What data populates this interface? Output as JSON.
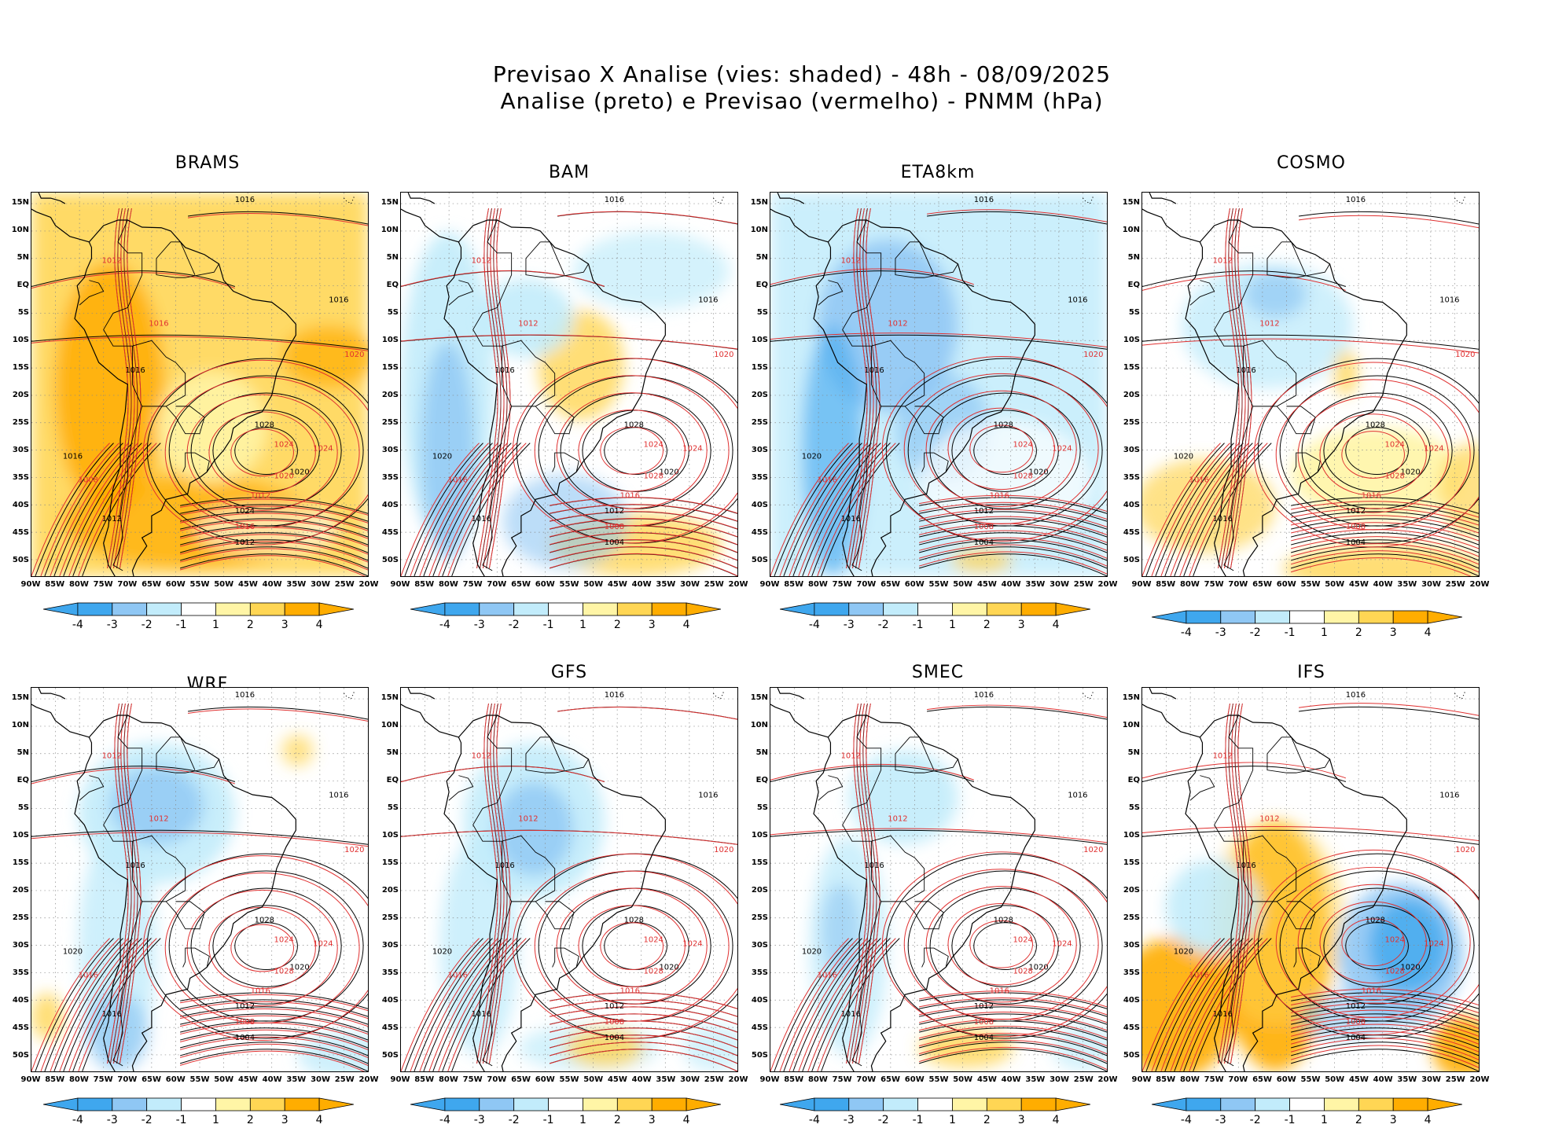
{
  "header": {
    "line1": "Previsao X Analise (vies: shaded) - 48h - 08/09/2025",
    "line2": "Analise (preto) e Previsao (vermelho) - PNMM (hPa)"
  },
  "axes": {
    "lat_labels": [
      "15N",
      "10N",
      "5N",
      "EQ",
      "5S",
      "10S",
      "15S",
      "20S",
      "25S",
      "30S",
      "35S",
      "40S",
      "45S",
      "50S"
    ],
    "lon_labels": [
      "90W",
      "85W",
      "80W",
      "75W",
      "70W",
      "65W",
      "60W",
      "55W",
      "50W",
      "45W",
      "40W",
      "35W",
      "30W",
      "25W",
      "20W"
    ]
  },
  "colorbar": {
    "labels": [
      "-4",
      "-3",
      "-2",
      "-1",
      "1",
      "2",
      "3",
      "4"
    ],
    "colors": [
      "#3fa7ee",
      "#8fc7f4",
      "#c2ecfb",
      "#ffffff",
      "#fff5a6",
      "#ffd654",
      "#ffad00"
    ]
  },
  "isobar_colors": {
    "analysis": "#000000",
    "forecast": "#e03030"
  },
  "panels": [
    {
      "name": "BRAMS",
      "labels": [
        "1016",
        "1012",
        "1016",
        "1020",
        "1016",
        "1024",
        "1028",
        "1024",
        "1020",
        "1012",
        "1024",
        "1016",
        "1012",
        "1008",
        "1016",
        "1020",
        "1012",
        "1016"
      ]
    },
    {
      "name": "BAM",
      "labels": [
        "1016",
        "1012",
        "1016",
        "1020",
        "1016",
        "1024",
        "1028",
        "1024",
        "1020",
        "1016",
        "1012",
        "1008",
        "1004",
        "1016",
        "1020",
        "1028",
        "1016",
        "1012"
      ]
    },
    {
      "name": "ETA8km",
      "labels": [
        "1016",
        "1012",
        "1016",
        "1020",
        "1016",
        "1024",
        "1028",
        "1024",
        "1020",
        "1016",
        "1012",
        "1008",
        "1004",
        "1016",
        "1020",
        "1028",
        "1016",
        "1012"
      ]
    },
    {
      "name": "COSMO",
      "labels": [
        "1016",
        "1012",
        "1016",
        "1020",
        "1016",
        "1024",
        "1028",
        "1024",
        "1020",
        "1016",
        "1012",
        "1008",
        "1004",
        "1016",
        "1020",
        "1028",
        "1016",
        "1012"
      ]
    },
    {
      "name": "WRF",
      "labels": [
        "1016",
        "1012",
        "1016",
        "1020",
        "1016",
        "1024",
        "1028",
        "1024",
        "1020",
        "1016",
        "1012",
        "1008",
        "1004",
        "1016",
        "1020",
        "1028",
        "1016",
        "1012"
      ]
    },
    {
      "name": "GFS",
      "labels": [
        "1016",
        "1012",
        "1016",
        "1020",
        "1016",
        "1024",
        "1028",
        "1024",
        "1020",
        "1016",
        "1012",
        "1008",
        "1004",
        "1016",
        "1020",
        "1028",
        "1016",
        "1012"
      ]
    },
    {
      "name": "SMEC",
      "labels": [
        "1016",
        "1012",
        "1016",
        "1020",
        "1016",
        "1024",
        "1028",
        "1024",
        "1020",
        "1016",
        "1012",
        "1008",
        "1004",
        "1016",
        "1020",
        "1028",
        "1016",
        "1012"
      ]
    },
    {
      "name": "IFS",
      "labels": [
        "1016",
        "1012",
        "1016",
        "1020",
        "1016",
        "1024",
        "1028",
        "1024",
        "1020",
        "1016",
        "1012",
        "1008",
        "1004",
        "1016",
        "1020",
        "1028",
        "1016",
        "1012"
      ]
    }
  ]
}
